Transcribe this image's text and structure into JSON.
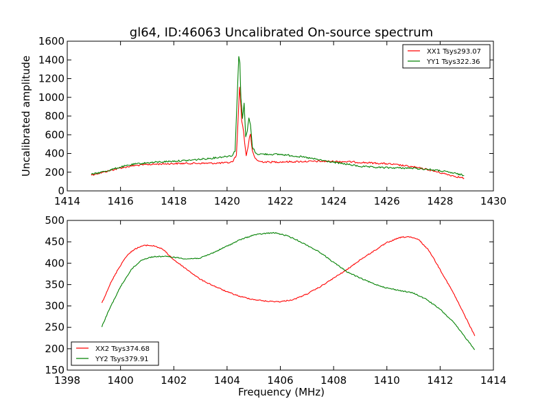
{
  "title": "gl64, ID:46063 Uncalibrated On-source spectrum",
  "colors": {
    "red": "#ff0000",
    "green": "#008000"
  },
  "chart_data": [
    {
      "type": "line",
      "ylabel": "Uncalibrated amplitude",
      "xlabel": "",
      "xlim": [
        1414,
        1430
      ],
      "ylim": [
        0,
        1600
      ],
      "xticks": [
        1414,
        1416,
        1418,
        1420,
        1422,
        1424,
        1426,
        1428,
        1430
      ],
      "yticks": [
        0,
        200,
        400,
        600,
        800,
        1000,
        1200,
        1400,
        1600
      ],
      "legend_position": "top-right",
      "series": [
        {
          "name": "XX1 Tsys293.07",
          "color": "#ff0000",
          "x": [
            1414.9,
            1415.5,
            1416.0,
            1416.5,
            1417.0,
            1417.5,
            1418.0,
            1418.5,
            1419.0,
            1419.5,
            1420.0,
            1420.2,
            1420.35,
            1420.42,
            1420.47,
            1420.5,
            1420.55,
            1420.62,
            1420.66,
            1420.72,
            1420.78,
            1420.84,
            1420.88,
            1420.95,
            1421.05,
            1421.2,
            1421.5,
            1422.0,
            1422.5,
            1423.0,
            1423.5,
            1424.0,
            1424.5,
            1425.0,
            1425.5,
            1426.0,
            1426.5,
            1427.0,
            1427.5,
            1428.0,
            1428.5,
            1428.9
          ],
          "y": [
            170,
            210,
            245,
            270,
            282,
            288,
            292,
            294,
            295,
            296,
            300,
            310,
            380,
            800,
            1110,
            1000,
            750,
            640,
            510,
            380,
            460,
            570,
            600,
            420,
            350,
            315,
            308,
            310,
            312,
            315,
            316,
            315,
            312,
            305,
            298,
            290,
            275,
            255,
            230,
            195,
            160,
            135
          ]
        },
        {
          "name": "YY1 Tsys322.36",
          "color": "#008000",
          "x": [
            1414.9,
            1415.5,
            1416.0,
            1416.5,
            1417.0,
            1417.5,
            1418.0,
            1418.5,
            1419.0,
            1419.5,
            1420.0,
            1420.2,
            1420.3,
            1420.38,
            1420.44,
            1420.48,
            1420.52,
            1420.58,
            1420.64,
            1420.7,
            1420.76,
            1420.82,
            1420.88,
            1420.95,
            1421.1,
            1421.5,
            1422.0,
            1422.5,
            1423.0,
            1423.5,
            1424.0,
            1424.5,
            1425.0,
            1425.5,
            1426.0,
            1426.5,
            1427.0,
            1427.5,
            1428.0,
            1428.5,
            1428.9
          ],
          "y": [
            175,
            215,
            255,
            285,
            300,
            310,
            318,
            325,
            338,
            352,
            370,
            380,
            430,
            1000,
            1440,
            1380,
            1000,
            780,
            930,
            580,
            640,
            780,
            700,
            470,
            395,
            392,
            390,
            375,
            355,
            330,
            305,
            285,
            262,
            252,
            248,
            245,
            242,
            232,
            215,
            190,
            165
          ]
        }
      ]
    },
    {
      "type": "line",
      "ylabel": "",
      "xlabel": "Frequency (MHz)",
      "xlim": [
        1398,
        1414
      ],
      "ylim": [
        150,
        500
      ],
      "xticks": [
        1398,
        1400,
        1402,
        1404,
        1406,
        1408,
        1410,
        1412,
        1414
      ],
      "yticks": [
        150,
        200,
        250,
        300,
        350,
        400,
        450,
        500
      ],
      "legend_position": "bottom-left",
      "series": [
        {
          "name": "XX2 Tsys374.68",
          "color": "#ff0000",
          "x": [
            1399.3,
            1399.6,
            1399.9,
            1400.2,
            1400.5,
            1400.8,
            1401.0,
            1401.3,
            1401.6,
            1402.0,
            1402.5,
            1403.0,
            1403.5,
            1404.0,
            1404.5,
            1405.0,
            1405.5,
            1406.0,
            1406.5,
            1407.0,
            1407.5,
            1408.0,
            1408.5,
            1409.0,
            1409.5,
            1410.0,
            1410.5,
            1410.8,
            1411.2,
            1411.6,
            1412.0,
            1412.5,
            1413.0,
            1413.3
          ],
          "y": [
            307,
            350,
            385,
            415,
            432,
            440,
            442,
            440,
            432,
            408,
            385,
            362,
            347,
            333,
            322,
            315,
            311,
            310,
            315,
            328,
            345,
            365,
            385,
            408,
            428,
            448,
            460,
            462,
            455,
            428,
            385,
            330,
            268,
            230
          ]
        },
        {
          "name": "YY2 Tsys379.91",
          "color": "#008000",
          "x": [
            1399.3,
            1399.6,
            1400.0,
            1400.4,
            1400.8,
            1401.2,
            1401.6,
            1402.0,
            1402.5,
            1403.0,
            1403.5,
            1404.0,
            1404.5,
            1405.0,
            1405.5,
            1405.8,
            1406.2,
            1406.6,
            1407.0,
            1407.5,
            1408.0,
            1408.5,
            1409.0,
            1409.5,
            1410.0,
            1410.5,
            1411.0,
            1411.5,
            1412.0,
            1412.5,
            1413.0,
            1413.3
          ],
          "y": [
            252,
            295,
            345,
            385,
            408,
            415,
            416,
            414,
            410,
            412,
            425,
            440,
            455,
            466,
            470,
            471,
            465,
            455,
            442,
            425,
            402,
            380,
            365,
            352,
            342,
            336,
            330,
            315,
            292,
            262,
            222,
            198
          ]
        }
      ]
    }
  ]
}
